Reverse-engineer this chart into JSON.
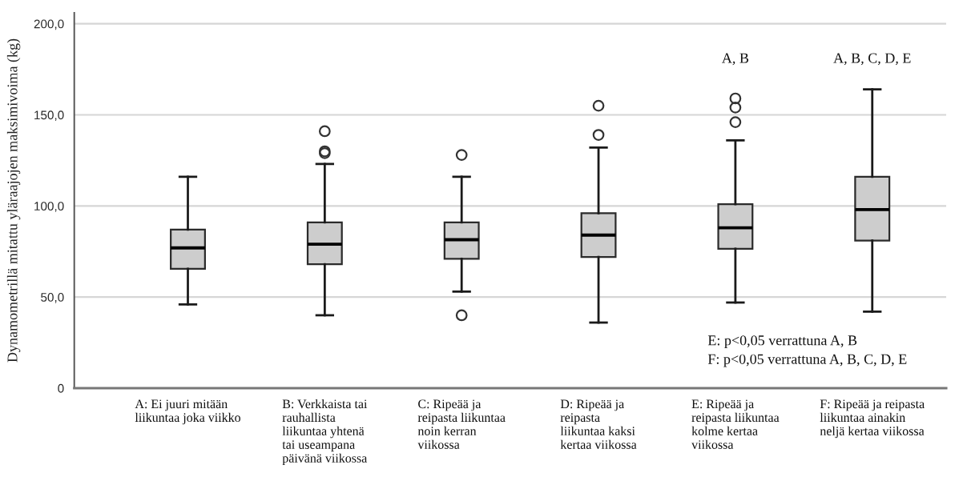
{
  "chart_data": {
    "type": "box",
    "ylabel": "Dynamometrillä mitattu yläraajojen maksimivoima (kg)",
    "categories": [
      "A: Ei juuri mitään\nliikuntaa joka viikko",
      "B: Verkkaista tai\nrauhallista\nliikuntaa yhtenä\ntai useampana\npäivänä viikossa",
      "C: Ripeää ja\nreipasta liikuntaa\nnoin kerran\nviikossa",
      "D: Ripeää ja\nreipasta\nliikuntaa kaksi\nkertaa viikossa",
      "E: Ripeää ja\nreipasta liikuntaa\nkolme kertaa\nviikossa",
      "F: Ripeää ja reipasta\nliikuntaa ainakin\nneljä kertaa viikossa"
    ],
    "boxes": [
      {
        "low": 46,
        "q1": 65.5,
        "median": 77,
        "q3": 87,
        "high": 116
      },
      {
        "low": 40,
        "q1": 68,
        "median": 79,
        "q3": 91,
        "high": 123,
        "outliers": [
          141,
          130,
          129
        ]
      },
      {
        "low": 53,
        "q1": 71,
        "median": 81.5,
        "q3": 91,
        "high": 116,
        "outliers": [
          128,
          40
        ]
      },
      {
        "low": 36,
        "q1": 72,
        "median": 84,
        "q3": 96,
        "high": 132,
        "outliers": [
          155,
          139
        ]
      },
      {
        "low": 47,
        "q1": 76.5,
        "median": 88,
        "q3": 101,
        "high": 136,
        "outliers": [
          159,
          154,
          146
        ]
      },
      {
        "low": 42,
        "q1": 81,
        "median": 98,
        "q3": 116,
        "high": 164
      }
    ],
    "color": "#cdcdcd",
    "marker": "circle",
    "ylim": [
      0,
      206
    ],
    "yticks": [
      0,
      {
        "value": 50,
        "label": "50,0"
      },
      {
        "value": 100,
        "label": "100,0"
      },
      {
        "value": 150,
        "label": "150,0"
      },
      {
        "value": 200,
        "label": "200,0"
      }
    ],
    "grid": "y",
    "annotations": [
      "A, B",
      "A, B, C, D, E",
      "E: p<0,05 verrattuna A, B",
      "F: p<0,05 verrattuna A, B, C, D, E"
    ]
  }
}
